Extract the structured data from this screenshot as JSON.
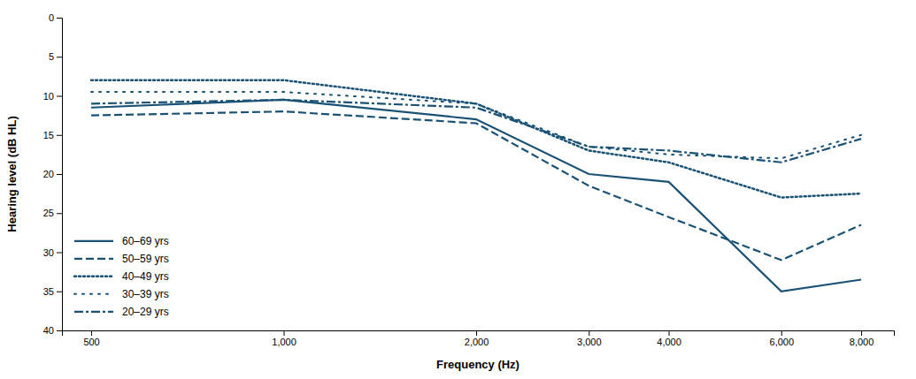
{
  "chart_data": {
    "type": "line",
    "xlabel": "Frequency (Hz)",
    "ylabel": "Hearing level (dB HL)",
    "x": [
      500,
      1000,
      2000,
      3000,
      4000,
      6000,
      8000
    ],
    "series": [
      {
        "name": "60–69 yrs",
        "color": "#1a5276",
        "line_style": "solid",
        "values": [
          11.5,
          10.5,
          13.0,
          20.0,
          21.0,
          35.0,
          33.5
        ]
      },
      {
        "name": "50–59 yrs",
        "color": "#1a5276",
        "line_style": "dashed",
        "values": [
          12.5,
          12.0,
          13.5,
          21.5,
          25.5,
          31.0,
          26.5
        ]
      },
      {
        "name": "40–49 yrs",
        "color": "#1a5276",
        "line_style": "dotted",
        "values": [
          8.0,
          8.0,
          11.0,
          17.0,
          18.5,
          23.0,
          22.5
        ]
      },
      {
        "name": "30–39 yrs",
        "color": "#1a5276",
        "line_style": "loosely-dotted",
        "values": [
          9.5,
          9.5,
          11.0,
          16.5,
          17.5,
          18.0,
          15.0
        ]
      },
      {
        "name": "20–29 yrs",
        "color": "#1a5276",
        "line_style": "dashdot",
        "values": [
          11.0,
          10.5,
          11.5,
          16.5,
          17.0,
          18.5,
          15.5
        ]
      }
    ],
    "xlim": [
      450,
      9000
    ],
    "xticks": [
      500,
      {
        "value": 1000,
        "label": "1,000"
      },
      {
        "value": 2000,
        "label": "2,000"
      },
      {
        "value": 3000,
        "label": "3,000"
      },
      {
        "value": 4000,
        "label": "4,000"
      },
      {
        "value": 6000,
        "label": "6,000"
      },
      {
        "value": 8000,
        "label": "8,000"
      }
    ],
    "ylim": [
      40,
      0
    ],
    "yticks": [
      0,
      5,
      10,
      15,
      20,
      25,
      30,
      35,
      40
    ],
    "log": "x",
    "grid": false,
    "legend": "lower left"
  }
}
